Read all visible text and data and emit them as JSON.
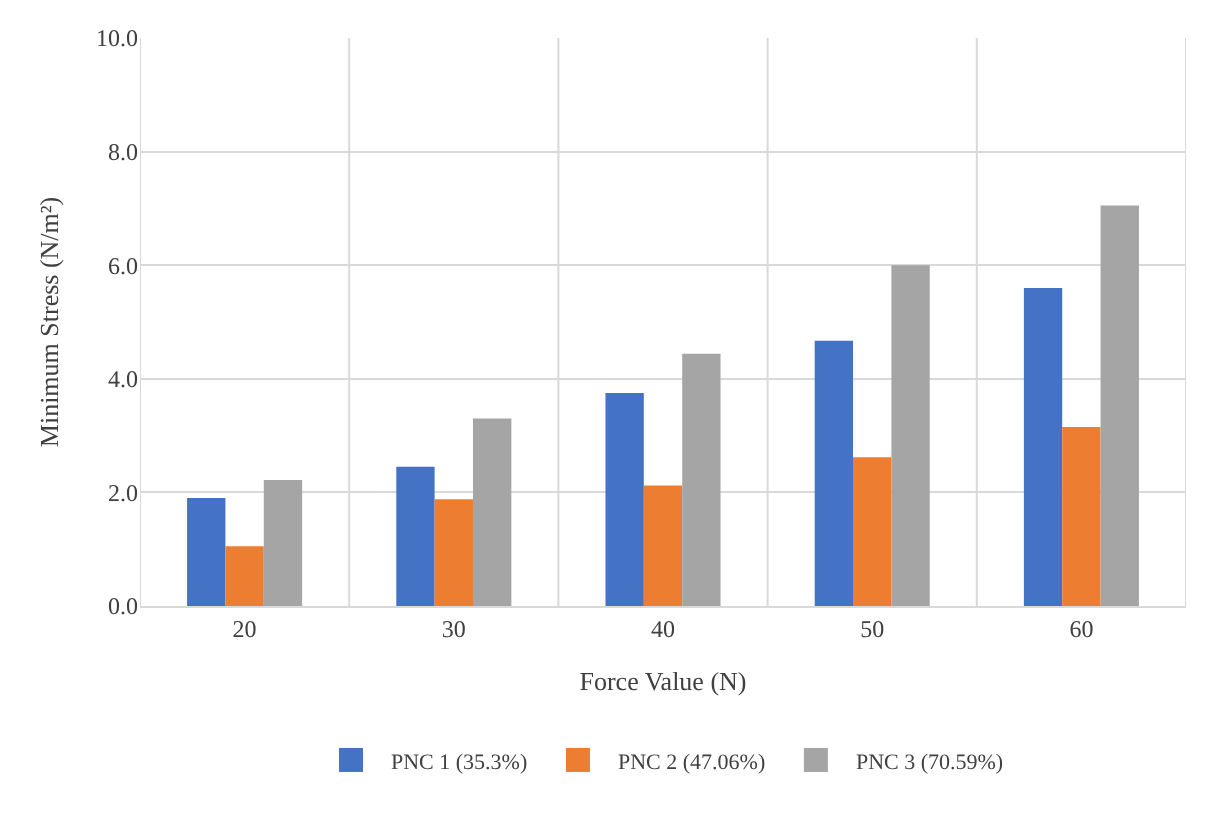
{
  "chart_data": {
    "type": "bar",
    "xlabel": "Force Value (N)",
    "ylabel": "Minimum Stress (N/m²)",
    "categories": [
      "20",
      "30",
      "40",
      "50",
      "60"
    ],
    "series": [
      {
        "name": "PNC 1 (35.3%)",
        "color": "#4472c4",
        "values": [
          1.9,
          2.45,
          3.75,
          4.67,
          5.6
        ]
      },
      {
        "name": "PNC 2 (47.06%)",
        "color": "#ed7d31",
        "values": [
          1.05,
          1.88,
          2.12,
          2.62,
          3.15
        ]
      },
      {
        "name": "PNC 3 (70.59%)",
        "color": "#a5a5a5",
        "values": [
          2.22,
          3.3,
          4.44,
          6.0,
          7.05
        ]
      }
    ],
    "ylim": [
      0,
      10
    ],
    "yticks": [
      {
        "value": 0,
        "label": "0.0"
      },
      {
        "value": 2,
        "label": "2.0"
      },
      {
        "value": 4,
        "label": "4.0"
      },
      {
        "value": 6,
        "label": "6.0"
      },
      {
        "value": 8,
        "label": "8.0"
      },
      {
        "value": 10,
        "label": "10.0"
      }
    ],
    "grid": true,
    "legend": "bottom"
  }
}
